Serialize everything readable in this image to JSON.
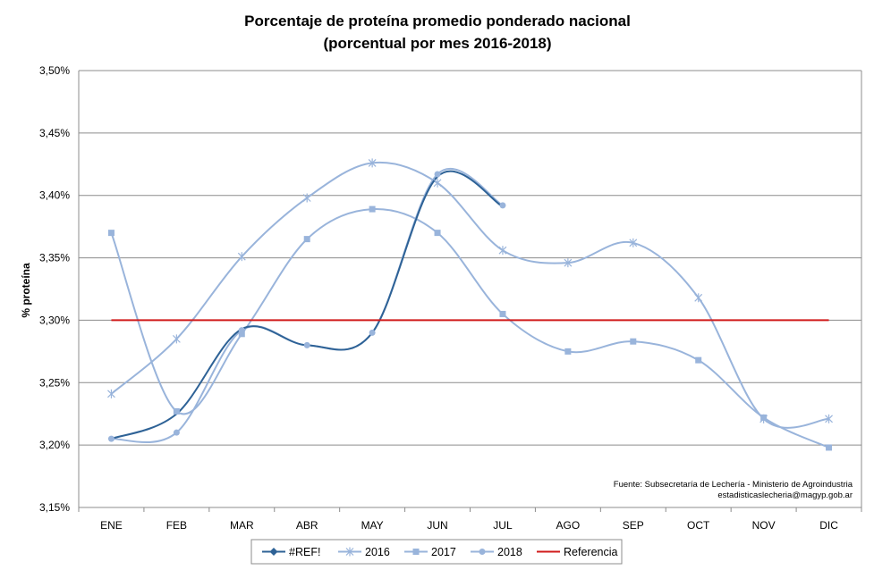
{
  "chart_data": {
    "type": "line",
    "title": "Porcentaje de proteína promedio ponderado nacional",
    "subtitle": "(porcentual por mes 2016-2018)",
    "ylabel": "% proteína",
    "xlabel": "",
    "categories": [
      "ENE",
      "FEB",
      "MAR",
      "ABR",
      "MAY",
      "JUN",
      "JUL",
      "AGO",
      "SEP",
      "OCT",
      "NOV",
      "DIC"
    ],
    "ylim": [
      3.15,
      3.5
    ],
    "yticks": [
      3.15,
      3.2,
      3.25,
      3.3,
      3.35,
      3.4,
      3.45,
      3.5
    ],
    "ytick_labels": [
      "3,15%",
      "3,20%",
      "3,25%",
      "3,30%",
      "3,35%",
      "3,40%",
      "3,45%",
      "3,50%"
    ],
    "grid": "horizontal",
    "legend_position": "bottom",
    "series": [
      {
        "name": "#REF!",
        "color": "#2e6296",
        "marker": "diamond",
        "values": [
          3.205,
          3.225,
          3.293,
          3.28,
          3.29,
          3.415,
          3.391,
          null,
          null,
          null,
          null,
          null
        ]
      },
      {
        "name": "2016",
        "color": "#99b4db",
        "marker": "star",
        "values": [
          3.241,
          3.285,
          3.351,
          3.398,
          3.426,
          3.41,
          3.356,
          3.346,
          3.362,
          3.318,
          3.221,
          3.221
        ]
      },
      {
        "name": "2017",
        "color": "#99b4db",
        "marker": "square",
        "values": [
          3.37,
          3.227,
          3.289,
          3.365,
          3.389,
          3.37,
          3.305,
          3.275,
          3.283,
          3.268,
          3.222,
          3.198
        ]
      },
      {
        "name": "2018",
        "color": "#99b4db",
        "marker": "circle",
        "values": [
          3.205,
          3.21,
          3.292,
          3.28,
          3.29,
          3.417,
          3.392,
          null,
          null,
          null,
          null,
          null
        ]
      },
      {
        "name": "Referencia",
        "color": "#d01b1b",
        "marker": "none",
        "values": [
          3.3,
          3.3,
          3.3,
          3.3,
          3.3,
          3.3,
          3.3,
          3.3,
          3.3,
          3.3,
          3.3,
          3.3
        ]
      }
    ],
    "annotations": [
      "Fuente: Subsecretaría de Lechería - Ministerio de Agroindustria",
      "estadisticaslecheria@magyp.gob.ar"
    ]
  }
}
